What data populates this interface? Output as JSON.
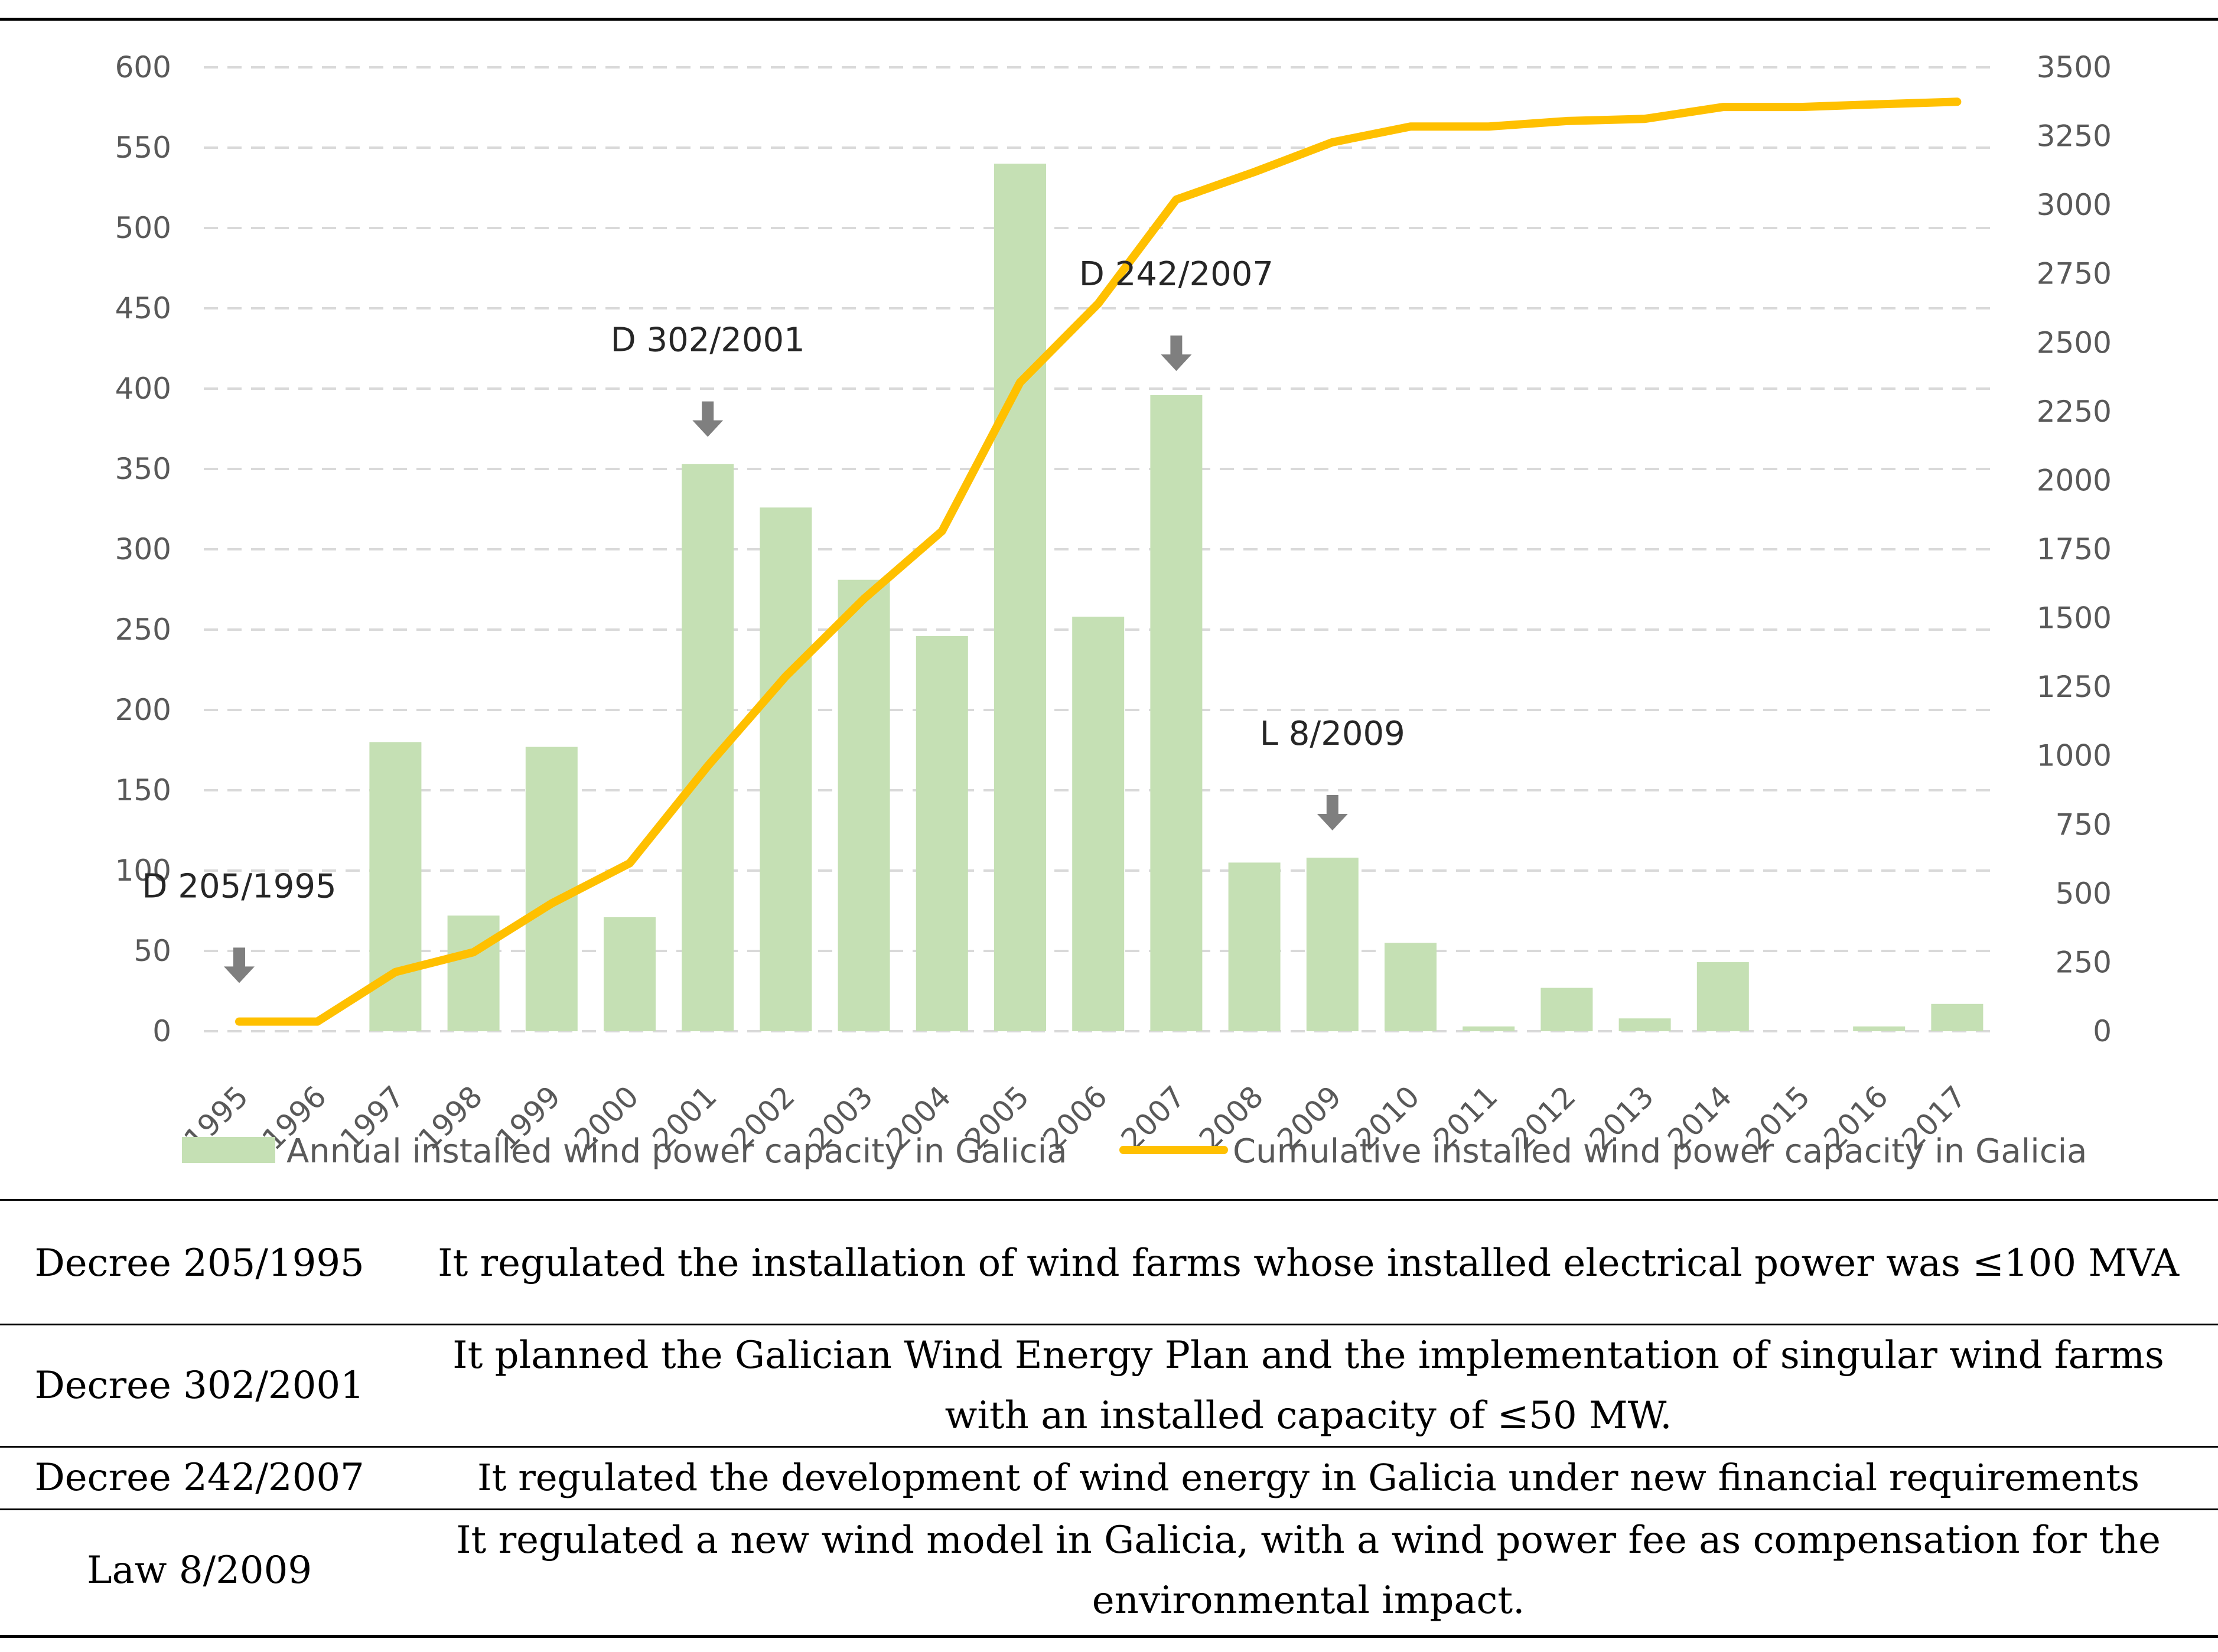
{
  "chart_data": {
    "type": "bar",
    "categories": [
      "1995",
      "1996",
      "1997",
      "1998",
      "1999",
      "2000",
      "2001",
      "2002",
      "2003",
      "2004",
      "2005",
      "2006",
      "2007",
      "2008",
      "2009",
      "2010",
      "2011",
      "2012",
      "2013",
      "2014",
      "2015",
      "2016",
      "2017"
    ],
    "series": [
      {
        "name": "Annual installed wind power capacity in Galicia",
        "type": "bar",
        "axis": "left",
        "color": "#c5e0b4",
        "values": [
          0,
          0,
          180,
          72,
          177,
          71,
          353,
          326,
          281,
          246,
          540,
          258,
          396,
          105,
          108,
          55,
          3,
          27,
          8,
          43,
          0,
          3,
          17
        ]
      },
      {
        "name": "Cumulative installed wind power capacity in Galicia",
        "type": "line",
        "axis": "right",
        "color": "#ffc000",
        "values": [
          35,
          35,
          215,
          287,
          464,
          610,
          963,
          1289,
          1570,
          1816,
          2356,
          2642,
          3020,
          3120,
          3228,
          3285,
          3285,
          3305,
          3313,
          3356,
          3356,
          3366,
          3375
        ]
      }
    ],
    "ylim_left": [
      0,
      600
    ],
    "yticks_left": [
      0,
      50,
      100,
      150,
      200,
      250,
      300,
      350,
      400,
      450,
      500,
      550,
      600
    ],
    "ylim_right": [
      0,
      3500
    ],
    "yticks_right": [
      0,
      250,
      500,
      750,
      1000,
      1250,
      1500,
      1750,
      2000,
      2250,
      2500,
      2750,
      3000,
      3250,
      3500
    ],
    "grid": true,
    "legend_position": "bottom",
    "annotations": [
      {
        "label": "D 205/1995",
        "category": "1995",
        "arrow_value": 30
      },
      {
        "label": "D 302/2001",
        "category": "2001",
        "arrow_value": 370
      },
      {
        "label": "D 242/2007",
        "category": "2007",
        "arrow_value": 411
      },
      {
        "label": "L 8/2009",
        "category": "2009",
        "arrow_value": 125
      }
    ]
  },
  "table": {
    "rows": [
      {
        "name": "Decree 205/1995",
        "description": "It regulated the installation of wind farms whose installed electrical power was ≤100 MVA"
      },
      {
        "name": "Decree 302/2001",
        "description": "It planned the Galician Wind Energy Plan and the implementation of singular wind farms with an installed capacity of ≤50 MW."
      },
      {
        "name": "Decree 242/2007",
        "description": "It regulated the development of wind energy in Galicia under new financial requirements"
      },
      {
        "name": "Law 8/2009",
        "description": "It regulated a new wind model in Galicia, with a wind power fee as compensation for the environmental impact."
      }
    ]
  }
}
